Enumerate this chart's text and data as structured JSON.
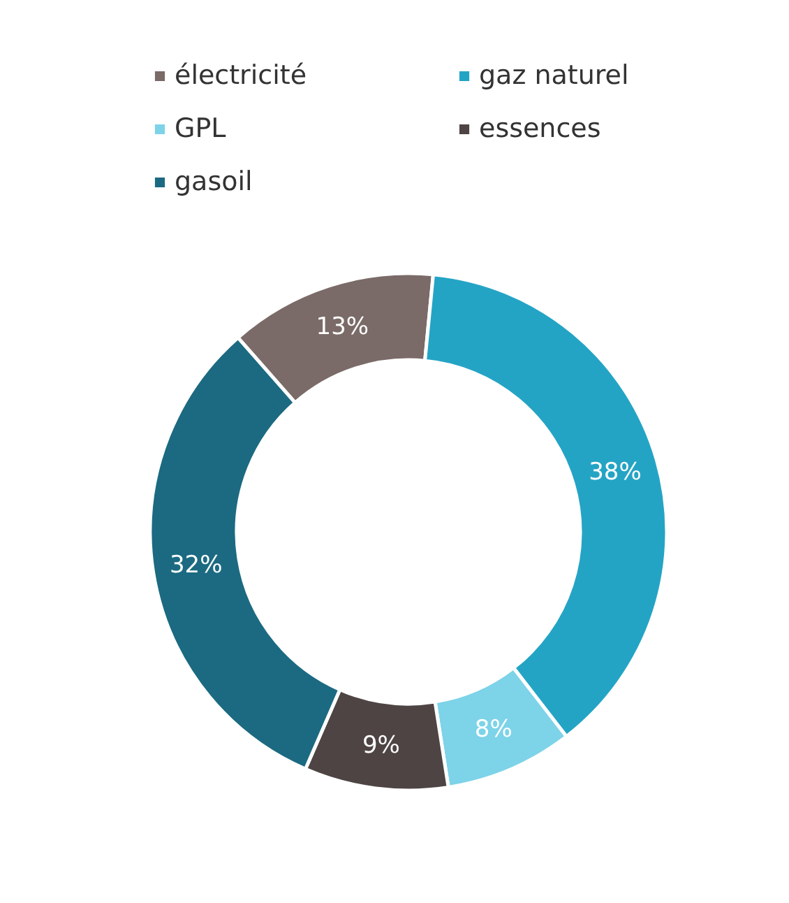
{
  "chart_data": {
    "type": "donut",
    "categories": [
      "électricité",
      "gaz naturel",
      "GPL",
      "essences",
      "gasoil"
    ],
    "values": [
      13,
      38,
      8,
      9,
      32
    ],
    "colors": [
      "#7a6b68",
      "#24a4c5",
      "#7dd3e8",
      "#4d4443",
      "#1b6a81"
    ],
    "value_labels": [
      "13%",
      "38%",
      "8%",
      "9%",
      "32%"
    ],
    "legend": "top"
  }
}
